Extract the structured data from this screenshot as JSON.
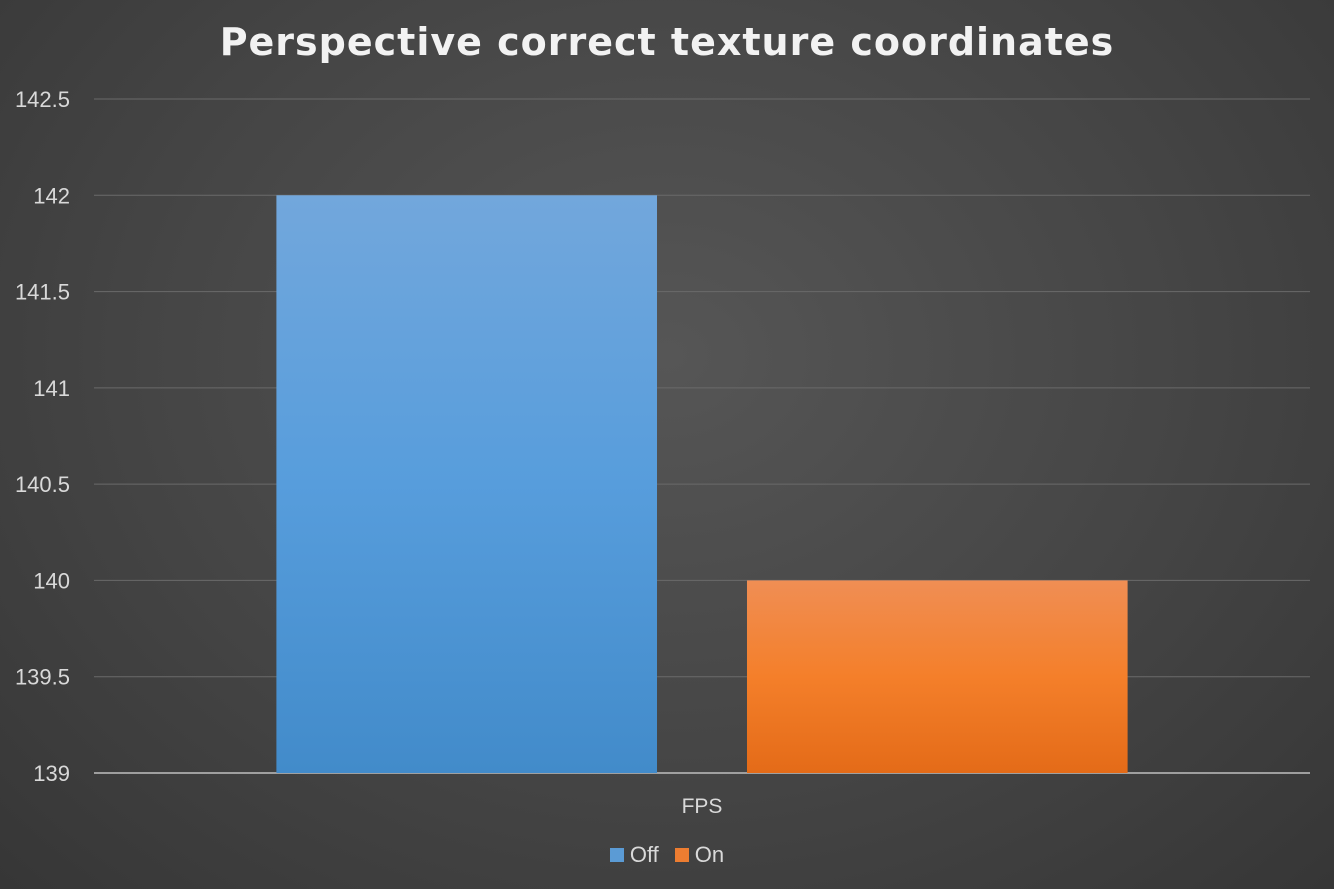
{
  "chart_data": {
    "type": "bar",
    "title": "Perspective correct texture coordinates",
    "categories": [
      "FPS"
    ],
    "series": [
      {
        "name": "Off",
        "values": [
          142
        ],
        "color": "#5b9bd5"
      },
      {
        "name": "On",
        "values": [
          140
        ],
        "color": "#ed7d31"
      }
    ],
    "ylim": [
      139,
      142.5
    ],
    "yticks": [
      "139",
      "139.5",
      "140",
      "140.5",
      "141",
      "141.5",
      "142",
      "142.5"
    ],
    "grid": true,
    "legend": "bottom"
  }
}
